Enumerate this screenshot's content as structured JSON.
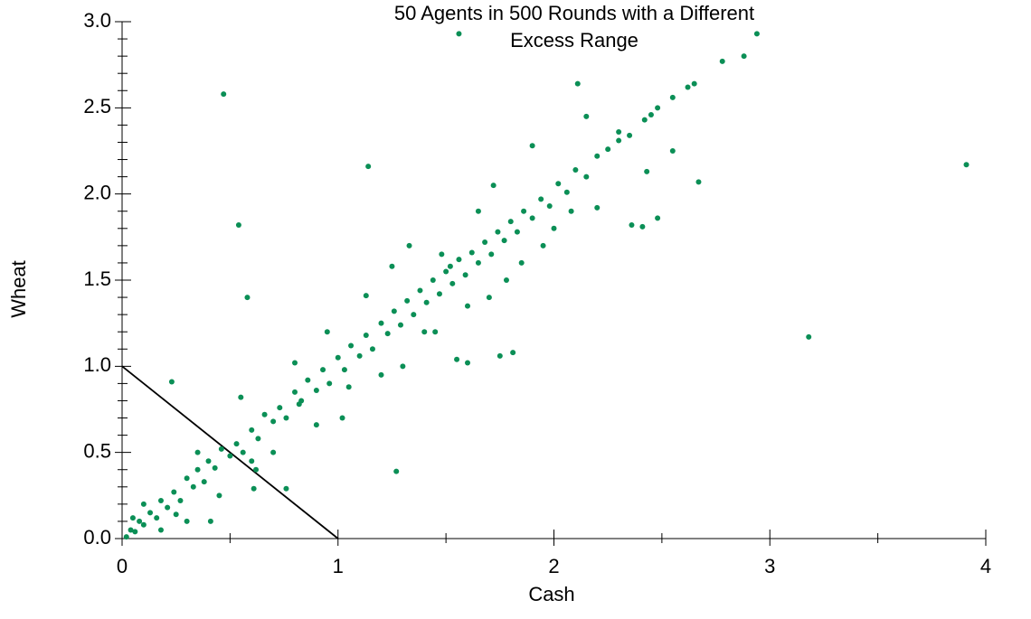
{
  "chart_data": {
    "type": "scatter",
    "title": [
      "50 Agents in 500 Rounds with a Different",
      "Excess Range"
    ],
    "x_label": "Cash",
    "y_label": "Wheat",
    "xlim": [
      0,
      4
    ],
    "ylim": [
      0,
      3
    ],
    "xticks": [
      0,
      1,
      2,
      3,
      4
    ],
    "yticks": [
      {
        "value": 0,
        "label": "0.0"
      },
      {
        "value": 0.5,
        "label": "0.5"
      },
      {
        "value": 1,
        "label": "1.0"
      },
      {
        "value": 1.5,
        "label": "1.5"
      },
      {
        "value": 2,
        "label": "2.0"
      },
      {
        "value": 2.5,
        "label": "2.5"
      },
      {
        "value": 3,
        "label": "3.0"
      }
    ],
    "xminorticks": [
      0.5,
      1.5,
      2.5,
      3.5
    ],
    "yminorticks": [
      0.1,
      0.2,
      0.3,
      0.4,
      0.6,
      0.7,
      0.8,
      0.9,
      1.1,
      1.2,
      1.3,
      1.4,
      1.6,
      1.7,
      1.8,
      1.9,
      2.1,
      2.2,
      2.3,
      2.4,
      2.6,
      2.7,
      2.8,
      2.9
    ],
    "reference_line": {
      "x": [
        0,
        1
      ],
      "y": [
        1,
        0
      ],
      "color": "#000000"
    },
    "series": [
      {
        "color": "#0b8f56",
        "x": [
          1.56,
          2.94,
          0.47,
          3.91,
          3.18,
          1.14,
          0.54,
          0.58,
          2.11,
          1.27,
          0.23,
          1.75,
          1.81,
          0.61,
          0.76,
          0.41,
          2.67,
          2.88,
          2.78,
          2.55,
          2.43,
          2.36,
          2.41,
          2.48,
          1.33,
          1.55,
          1.6,
          0.02,
          0.04,
          0.06,
          0.08,
          0.1,
          0.13,
          0.16,
          0.18,
          0.21,
          0.24,
          0.27,
          0.3,
          0.33,
          0.35,
          0.38,
          0.4,
          0.43,
          0.46,
          0.5,
          0.53,
          0.56,
          0.6,
          0.63,
          0.66,
          0.7,
          0.73,
          0.76,
          0.8,
          0.83,
          0.86,
          0.9,
          0.93,
          0.96,
          1.0,
          1.03,
          1.06,
          1.1,
          1.13,
          1.16,
          1.2,
          1.23,
          1.26,
          1.29,
          1.32,
          1.35,
          1.38,
          1.41,
          1.44,
          1.47,
          1.5,
          1.53,
          1.56,
          1.59,
          1.62,
          1.65,
          1.68,
          1.71,
          1.74,
          1.77,
          1.8,
          1.83,
          1.86,
          1.9,
          1.94,
          1.98,
          2.02,
          2.06,
          2.1,
          2.15,
          2.2,
          2.25,
          2.3,
          2.35,
          2.42,
          2.48,
          2.55,
          2.62,
          2.65,
          0.25,
          0.3,
          0.55,
          0.62,
          0.8,
          0.82,
          0.9,
          0.95,
          1.02,
          1.05,
          1.13,
          1.2,
          1.25,
          1.3,
          1.4,
          1.45,
          1.48,
          1.52,
          1.6,
          1.65,
          1.7,
          1.72,
          1.78,
          1.85,
          1.9,
          1.95,
          2.0,
          2.08,
          2.15,
          2.2,
          2.3,
          2.45,
          0.1,
          0.05,
          0.18,
          0.35,
          0.45,
          0.6,
          0.7
        ],
        "values": [
          2.93,
          2.93,
          2.58,
          2.17,
          1.17,
          2.16,
          1.82,
          1.4,
          2.64,
          0.39,
          0.91,
          1.06,
          1.08,
          0.29,
          0.29,
          0.1,
          2.07,
          2.8,
          2.77,
          2.25,
          2.13,
          1.82,
          1.81,
          1.86,
          1.7,
          1.04,
          1.02,
          0.01,
          0.05,
          0.04,
          0.1,
          0.08,
          0.15,
          0.12,
          0.22,
          0.18,
          0.27,
          0.22,
          0.35,
          0.3,
          0.4,
          0.33,
          0.45,
          0.41,
          0.52,
          0.48,
          0.55,
          0.5,
          0.63,
          0.58,
          0.72,
          0.68,
          0.76,
          0.7,
          0.85,
          0.8,
          0.92,
          0.86,
          0.98,
          0.9,
          1.05,
          0.98,
          1.12,
          1.06,
          1.18,
          1.1,
          1.25,
          1.19,
          1.32,
          1.24,
          1.38,
          1.3,
          1.44,
          1.37,
          1.5,
          1.42,
          1.55,
          1.48,
          1.62,
          1.53,
          1.66,
          1.6,
          1.72,
          1.65,
          1.78,
          1.73,
          1.84,
          1.78,
          1.9,
          1.86,
          1.97,
          1.93,
          2.06,
          2.01,
          2.14,
          2.1,
          2.22,
          2.26,
          2.31,
          2.34,
          2.43,
          2.5,
          2.56,
          2.62,
          2.64,
          0.14,
          0.1,
          0.82,
          0.4,
          1.02,
          0.78,
          0.66,
          1.2,
          0.7,
          0.88,
          1.41,
          0.95,
          1.58,
          1.0,
          1.2,
          1.2,
          1.65,
          1.58,
          1.35,
          1.9,
          1.4,
          2.05,
          1.5,
          1.6,
          2.28,
          1.7,
          1.8,
          1.9,
          2.45,
          1.92,
          2.36,
          2.46,
          0.2,
          0.12,
          0.05,
          0.5,
          0.25,
          0.45,
          0.5
        ]
      }
    ]
  }
}
